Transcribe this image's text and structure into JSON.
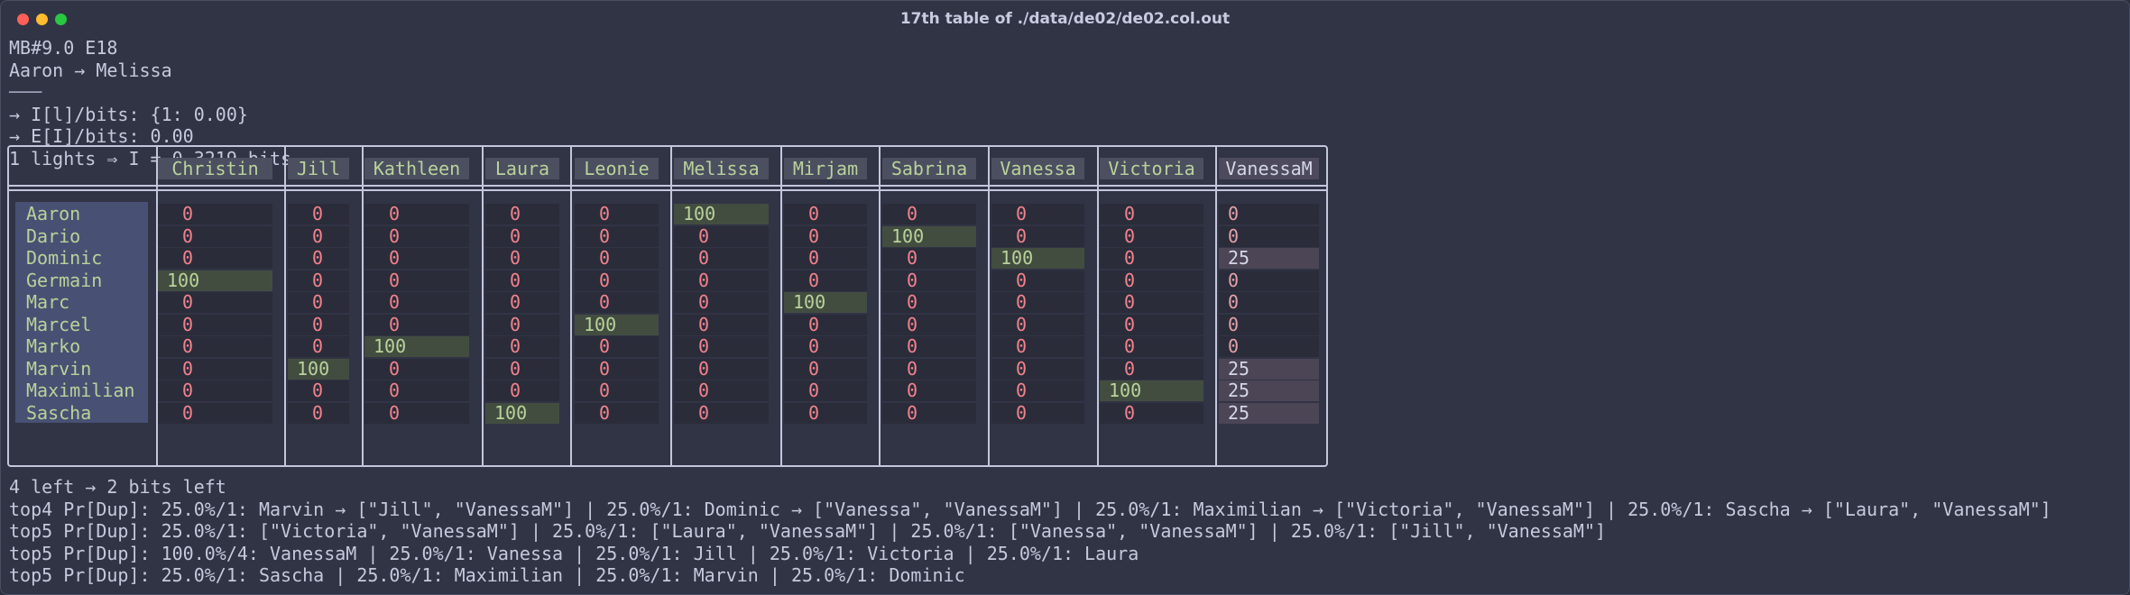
{
  "window": {
    "title": "17th table of ./data/de02/de02.col.out"
  },
  "header_lines": [
    "MB#9.0 E18",
    "Aaron → Melissa",
    "───",
    "→ I[l]/bits: {1: 0.00}",
    "→ E[I]/bits: 0.00",
    "1 lights ⇒ I = 0.3219 bits"
  ],
  "table": {
    "columns": [
      "Christin",
      "Jill",
      "Kathleen",
      "Laura",
      "Leonie",
      "Melissa",
      "Mirjam",
      "Sabrina",
      "Vanessa",
      "Victoria",
      "VanessaM"
    ],
    "rows": [
      {
        "name": "Aaron",
        "values": [
          "0",
          "0",
          "0",
          "0",
          "0",
          "100",
          "0",
          "0",
          "0",
          "0",
          "0"
        ]
      },
      {
        "name": "Dario",
        "values": [
          "0",
          "0",
          "0",
          "0",
          "0",
          "0",
          "0",
          "100",
          "0",
          "0",
          "0"
        ]
      },
      {
        "name": "Dominic",
        "values": [
          "0",
          "0",
          "0",
          "0",
          "0",
          "0",
          "0",
          "0",
          "100",
          "0",
          "25"
        ]
      },
      {
        "name": "Germain",
        "values": [
          "100",
          "0",
          "0",
          "0",
          "0",
          "0",
          "0",
          "0",
          "0",
          "0",
          "0"
        ]
      },
      {
        "name": "Marc",
        "values": [
          "0",
          "0",
          "0",
          "0",
          "0",
          "0",
          "100",
          "0",
          "0",
          "0",
          "0"
        ]
      },
      {
        "name": "Marcel",
        "values": [
          "0",
          "0",
          "0",
          "0",
          "100",
          "0",
          "0",
          "0",
          "0",
          "0",
          "0"
        ]
      },
      {
        "name": "Marko",
        "values": [
          "0",
          "0",
          "100",
          "0",
          "0",
          "0",
          "0",
          "0",
          "0",
          "0",
          "0"
        ]
      },
      {
        "name": "Marvin",
        "values": [
          "0",
          "100",
          "0",
          "0",
          "0",
          "0",
          "0",
          "0",
          "0",
          "0",
          "25"
        ]
      },
      {
        "name": "Maximilian",
        "values": [
          "0",
          "0",
          "0",
          "0",
          "0",
          "0",
          "0",
          "0",
          "0",
          "100",
          "25"
        ]
      },
      {
        "name": "Sascha",
        "values": [
          "0",
          "0",
          "0",
          "100",
          "0",
          "0",
          "0",
          "0",
          "0",
          "0",
          "25"
        ]
      }
    ]
  },
  "footer_lines": [
    "4 left → 2 bits left",
    "top4 Pr[Dup]: 25.0%/1: Marvin → [\"Jill\", \"VanessaM\"] | 25.0%/1: Dominic → [\"Vanessa\", \"VanessaM\"] | 25.0%/1: Maximilian → [\"Victoria\", \"VanessaM\"] | 25.0%/1: Sascha → [\"Laura\", \"VanessaM\"]",
    "top5 Pr[Dup]: 25.0%/1: [\"Victoria\", \"VanessaM\"] | 25.0%/1: [\"Laura\", \"VanessaM\"] | 25.0%/1: [\"Vanessa\", \"VanessaM\"] | 25.0%/1: [\"Jill\", \"VanessaM\"]",
    "top5 Pr[Dup]: 100.0%/4: VanessaM | 25.0%/1: Vanessa | 25.0%/1: Jill | 25.0%/1: Victoria | 25.0%/1: Laura",
    "top5 Pr[Dup]: 25.0%/1: Sascha | 25.0%/1: Maximilian | 25.0%/1: Marvin | 25.0%/1: Dominic"
  ],
  "colors": {
    "background": "#313445",
    "text": "#c6c9dc",
    "zero": "#f2828c",
    "hit": "#b9d29a",
    "hit_bg": "#424d40"
  }
}
